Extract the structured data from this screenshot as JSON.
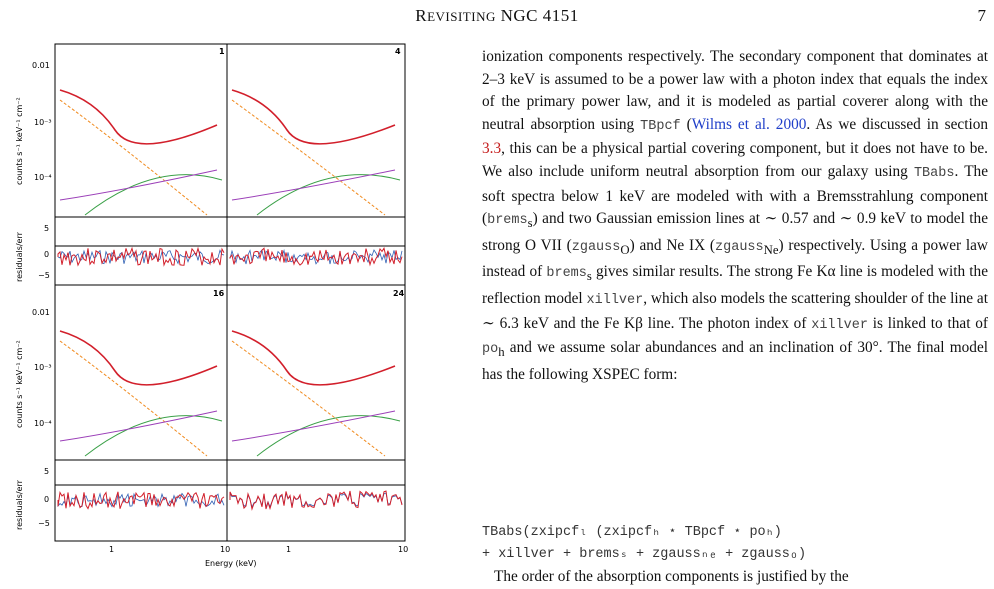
{
  "header": {
    "title_prefix": "R",
    "title_rest": "EVISITING",
    "title_name": "NGC 4151",
    "page_number": "7"
  },
  "figure": {
    "panel_labels": [
      "1",
      "4",
      "16",
      "24"
    ],
    "ylabel_spectrum": "counts s⁻¹ keV⁻¹ cm⁻²",
    "ylabel_residual": "residuals/err",
    "xlabel": "Energy (keV)",
    "y_ticks_spectrum": [
      "0.01",
      "10⁻³",
      "10⁻⁴"
    ],
    "y_ticks_residual": [
      "5",
      "0",
      "−5"
    ],
    "x_ticks": [
      "1",
      "10",
      "1",
      "10"
    ],
    "colors": {
      "data": "#d21f2b",
      "model_orange": "#f08a1e",
      "model_green": "#3aa047",
      "model_purple": "#9b3fb8",
      "residual_blue": "#2f5fb3"
    }
  },
  "text": {
    "p1a": "ionization components respectively. The secondary component that dominates at 2–3 keV is assumed to be a power law with a photon index that equals the index of the primary power law, and it is modeled as partial coverer along with the neutral absorption using ",
    "tbpcf": "TBpcf",
    "cite1": "Wilms et al. 2000",
    "p1b": ". As we discussed in section ",
    "sec": "3.3",
    "p1c": ", this can be a physical partial covering component, but it does not have to be. We also include uniform neutral absorption from our galaxy using ",
    "tbabs": "TBabs",
    "p1d": ". The soft spectra below 1 keV are modeled with with a Bremsstrahlung component (",
    "brems": "brems",
    "p1e": ") and two Gaussian emission lines at ∼ 0.57 and ∼ 0.9 keV to model the strong O VII (",
    "zgo": "zgauss",
    "p1f": ") and Ne IX (",
    "zgne": "zgauss",
    "p1g": ") respectively. Using a power law instead of ",
    "brems2": "brems",
    "p1h": " gives similar results. The strong Fe Kα line is modeled with the reflection model ",
    "xillver": "xillver",
    "p1i": ", which also models the scattering shoulder of the line at ∼ 6.3 keV and the Fe Kβ line. The photon index of ",
    "xillver2": "xillver",
    "p1j": " is linked to that of ",
    "poh": "po",
    "p1k": " and we assume solar abundances and an inclination of 30°. The final model has the following XSPEC form:",
    "eq1": "TBabs(zxipcfₗ (zxipcfₕ ⋆ TBpcf ⋆ poₕ)",
    "eq2": "+ xillver + bremsₛ + zgaussₙₑ + zgaussₒ)",
    "p2": "The order of the absorption components is justified by the"
  }
}
